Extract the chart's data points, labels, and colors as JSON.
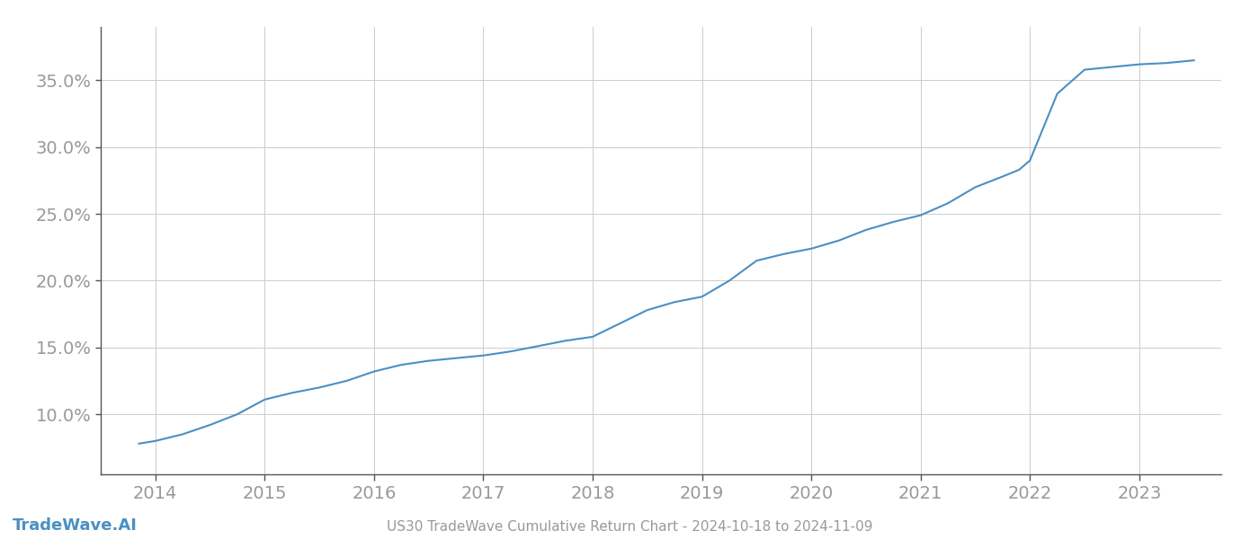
{
  "title": "US30 TradeWave Cumulative Return Chart - 2024-10-18 to 2024-11-09",
  "watermark": "TradeWave.AI",
  "line_color": "#4a90c4",
  "background_color": "#ffffff",
  "grid_color": "#cccccc",
  "x_years": [
    2013.85,
    2014.0,
    2014.25,
    2014.5,
    2014.75,
    2015.0,
    2015.25,
    2015.5,
    2015.75,
    2016.0,
    2016.25,
    2016.5,
    2016.75,
    2017.0,
    2017.25,
    2017.5,
    2017.75,
    2018.0,
    2018.25,
    2018.5,
    2018.75,
    2019.0,
    2019.25,
    2019.5,
    2019.75,
    2020.0,
    2020.25,
    2020.5,
    2020.75,
    2021.0,
    2021.25,
    2021.5,
    2021.75,
    2021.9,
    2022.0,
    2022.1,
    2022.25,
    2022.5,
    2022.75,
    2023.0,
    2023.25,
    2023.5
  ],
  "y_values": [
    0.078,
    0.08,
    0.085,
    0.092,
    0.1,
    0.111,
    0.116,
    0.12,
    0.125,
    0.132,
    0.137,
    0.14,
    0.142,
    0.144,
    0.147,
    0.151,
    0.155,
    0.158,
    0.168,
    0.178,
    0.184,
    0.188,
    0.2,
    0.215,
    0.22,
    0.224,
    0.23,
    0.238,
    0.244,
    0.249,
    0.258,
    0.27,
    0.278,
    0.283,
    0.29,
    0.31,
    0.34,
    0.358,
    0.36,
    0.362,
    0.363,
    0.365
  ],
  "xlim": [
    2013.5,
    2023.75
  ],
  "ylim": [
    0.055,
    0.39
  ],
  "yticks": [
    0.1,
    0.15,
    0.2,
    0.25,
    0.3,
    0.35
  ],
  "xticks": [
    2014,
    2015,
    2016,
    2017,
    2018,
    2019,
    2020,
    2021,
    2022,
    2023
  ],
  "tick_label_color": "#999999",
  "spine_color": "#555555",
  "line_width": 1.5,
  "title_fontsize": 11,
  "watermark_fontsize": 13,
  "tick_fontsize": 14
}
